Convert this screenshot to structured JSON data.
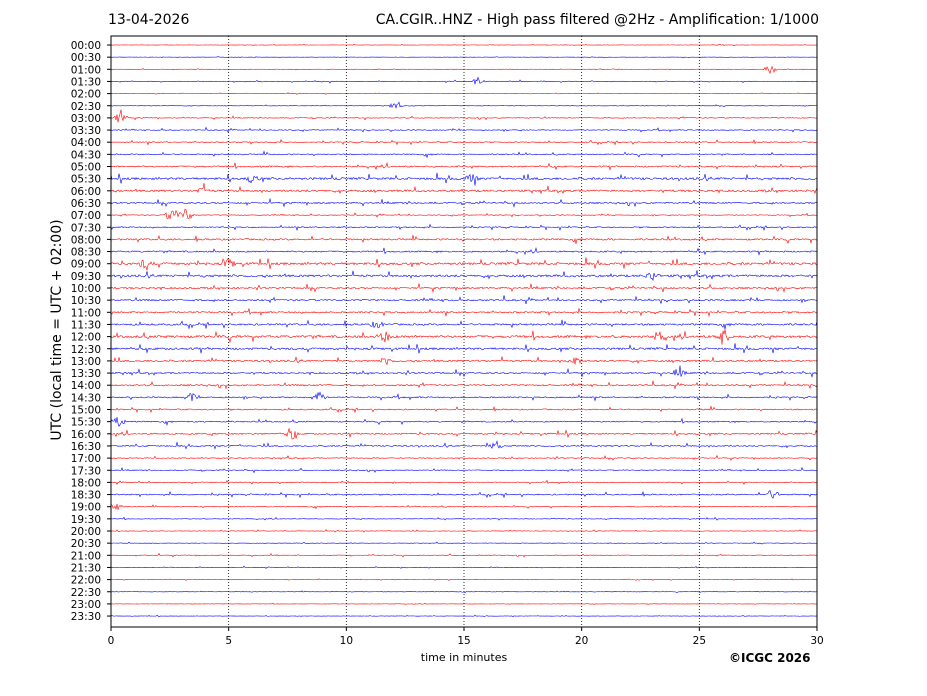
{
  "header": {
    "date": "13-04-2026",
    "title": "CA.CGIR..HNZ - High pass filtered @2Hz - Amplification: 1/1000"
  },
  "footer": {
    "copyright": "©ICGC 2026"
  },
  "chart_data": {
    "type": "line",
    "title": "CA.CGIR..HNZ - High pass filtered @2Hz - Amplification: 1/1000",
    "xlabel": "time in minutes",
    "ylabel": "UTC (local time = UTC + 02:00)",
    "xlim": [
      0,
      30
    ],
    "x_ticks": [
      0,
      5,
      10,
      15,
      20,
      25,
      30
    ],
    "vertical_gridlines": [
      5,
      10,
      15,
      20,
      25
    ],
    "grid_style": "dotted vertical",
    "colors": {
      "even_rows": "#ff0000",
      "odd_rows": "#0000ff"
    },
    "rows": [
      "00:00",
      "00:30",
      "01:00",
      "01:30",
      "02:00",
      "02:30",
      "03:00",
      "03:30",
      "04:00",
      "04:30",
      "05:00",
      "05:30",
      "06:00",
      "06:30",
      "07:00",
      "07:30",
      "08:00",
      "08:30",
      "09:00",
      "09:30",
      "10:00",
      "10:30",
      "11:00",
      "11:30",
      "12:00",
      "12:30",
      "13:00",
      "13:30",
      "14:00",
      "14:30",
      "15:00",
      "15:30",
      "16:00",
      "16:30",
      "17:00",
      "17:30",
      "18:00",
      "18:30",
      "19:00",
      "19:30",
      "20:00",
      "20:30",
      "21:00",
      "21:30",
      "22:00",
      "22:30",
      "23:00",
      "23:30"
    ],
    "noise_level": [
      0.4,
      0.4,
      0.5,
      0.8,
      0.5,
      0.6,
      1.0,
      1.2,
      1.4,
      1.5,
      2.0,
      3.0,
      2.6,
      2.0,
      1.0,
      1.6,
      2.2,
      2.0,
      3.2,
      3.0,
      2.2,
      2.2,
      2.2,
      2.4,
      3.2,
      2.8,
      2.4,
      2.0,
      2.0,
      1.8,
      1.6,
      1.6,
      2.0,
      1.8,
      1.2,
      1.2,
      1.1,
      1.6,
      0.9,
      0.8,
      0.7,
      0.6,
      0.9,
      0.6,
      0.5,
      0.5,
      0.4,
      0.4
    ],
    "events": [
      {
        "row": 2,
        "x": 28.0,
        "amp": 4
      },
      {
        "row": 3,
        "x": 15.6,
        "amp": 4
      },
      {
        "row": 5,
        "x": 12.1,
        "amp": 4
      },
      {
        "row": 6,
        "x": 0.4,
        "amp": 7
      },
      {
        "row": 11,
        "x": 15.3,
        "amp": 5
      },
      {
        "row": 11,
        "x": 6.0,
        "amp": 4
      },
      {
        "row": 12,
        "x": 3.9,
        "amp": 4
      },
      {
        "row": 14,
        "x": 2.6,
        "amp": 8
      },
      {
        "row": 14,
        "x": 3.2,
        "amp": 8
      },
      {
        "row": 18,
        "x": 1.5,
        "amp": 6
      },
      {
        "row": 18,
        "x": 5.0,
        "amp": 5
      },
      {
        "row": 19,
        "x": 23.0,
        "amp": 5
      },
      {
        "row": 23,
        "x": 11.3,
        "amp": 4
      },
      {
        "row": 24,
        "x": 11.6,
        "amp": 6
      },
      {
        "row": 24,
        "x": 26.0,
        "amp": 9
      },
      {
        "row": 24,
        "x": 23.3,
        "amp": 5
      },
      {
        "row": 26,
        "x": 11.7,
        "amp": 4
      },
      {
        "row": 26,
        "x": 19.7,
        "amp": 5
      },
      {
        "row": 27,
        "x": 24.1,
        "amp": 5
      },
      {
        "row": 29,
        "x": 3.4,
        "amp": 4
      },
      {
        "row": 29,
        "x": 8.8,
        "amp": 6
      },
      {
        "row": 31,
        "x": 0.3,
        "amp": 6
      },
      {
        "row": 32,
        "x": 7.7,
        "amp": 5
      },
      {
        "row": 33,
        "x": 16.3,
        "amp": 6
      },
      {
        "row": 37,
        "x": 28.1,
        "amp": 5
      },
      {
        "row": 38,
        "x": 0.2,
        "amp": 4
      }
    ]
  }
}
